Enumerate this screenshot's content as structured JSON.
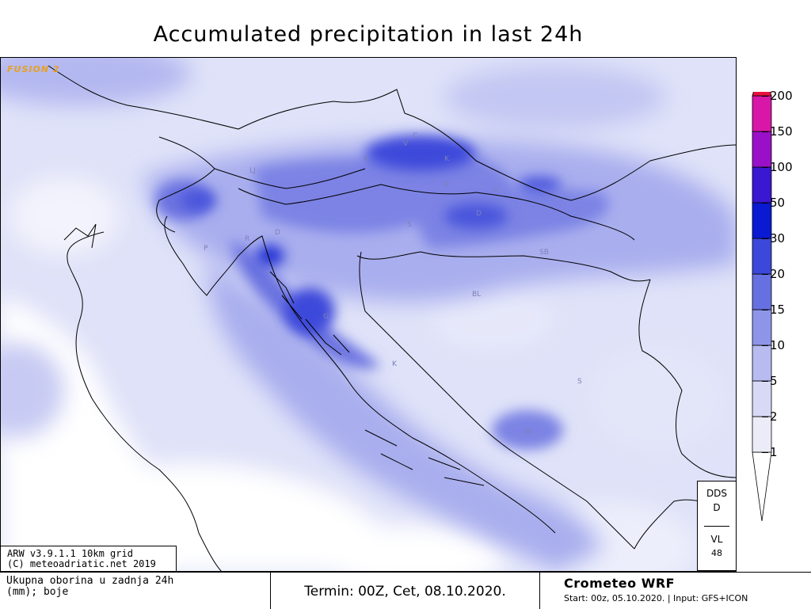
{
  "title": "Accumulated precipitation in last 24h",
  "fusion_label": "FUSION 2",
  "legend": {
    "unit_levels": [
      "1",
      "2",
      "5",
      "10",
      "15",
      "20",
      "30",
      "50",
      "100",
      "150",
      "200"
    ],
    "colors": [
      "#ffffff",
      "#ececf8",
      "#d7d9f5",
      "#b7bbef",
      "#8e95e8",
      "#6670e0",
      "#3c48da",
      "#0a19d2",
      "#3a17d0",
      "#9a10c8",
      "#d817a8",
      "#e8103c"
    ]
  },
  "dds_box": {
    "top": "DDS",
    "mid": "D",
    "bottom1": "VL",
    "bottom2": "48"
  },
  "model_info": {
    "line1": "ARW v3.9.1.1 10km grid",
    "line2": "(C) meteoadriatic.net 2019"
  },
  "footer": {
    "left_line1": "Ukupna oborina u zadnja 24h",
    "left_line2": "(mm); boje",
    "termin": "Termin: 00Z, Cet, 08.10.2020.",
    "brand": "Crometeo WRF",
    "meta": "Start: 00z, 05.10.2020. | Input: GFS+ICON"
  },
  "map_labels": [
    "LJ",
    "K",
    "V",
    "C",
    "K",
    "K",
    "V",
    "D",
    "S",
    "D",
    "R",
    "P",
    "G",
    "BL",
    "K",
    "S",
    "M",
    "SB"
  ]
}
